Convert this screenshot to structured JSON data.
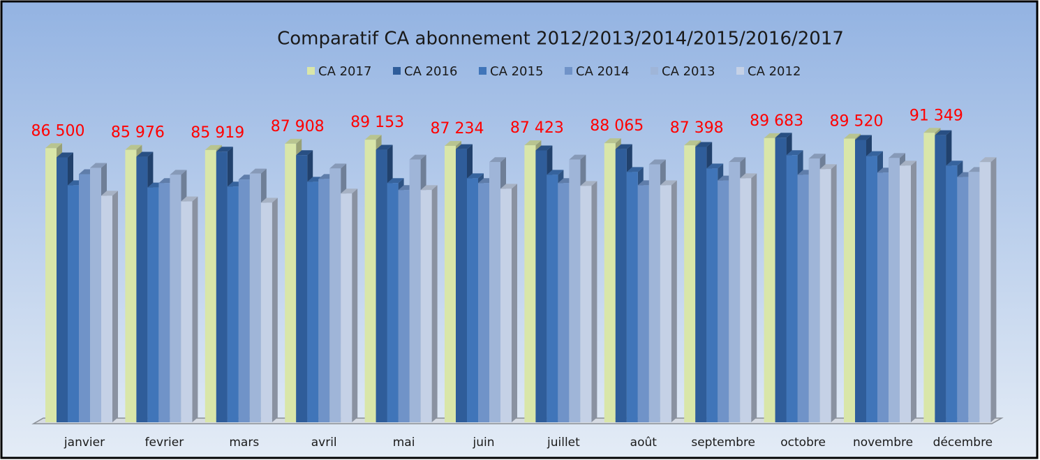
{
  "chart_data": {
    "type": "bar3d",
    "title": "Comparatif CA abonnement  2012/2013/2014/2015/2016/2017",
    "categories": [
      "janvier",
      "fevrier",
      "mars",
      "avril",
      "mai",
      "juin",
      "juillet",
      "août",
      "septembre",
      "octobre",
      "novembre",
      "décembre"
    ],
    "series": [
      {
        "name": "CA 2017",
        "color": "#d9e6a9",
        "values": [
          86500,
          85976,
          85919,
          87908,
          89153,
          87234,
          87423,
          88065,
          87398,
          89683,
          89520,
          91349
        ],
        "value_labels": [
          "86 500",
          "85 976",
          "85 919",
          "87 908",
          "89 153",
          "87 234",
          "87 423",
          "88 065",
          "87 398",
          "89 683",
          "89 520",
          "91 349"
        ]
      },
      {
        "name": "CA 2016",
        "color": "#2f5d9a",
        "values": [
          83600,
          83800,
          85400,
          84300,
          86000,
          86200,
          85800,
          86200,
          86900,
          89800,
          89100,
          90600
        ]
      },
      {
        "name": "CA 2015",
        "color": "#4075b9",
        "values": [
          74800,
          74100,
          74400,
          75900,
          75500,
          77000,
          78100,
          79000,
          80100,
          84300,
          84000,
          81000
        ]
      },
      {
        "name": "CA 2014",
        "color": "#7093c8",
        "values": [
          78300,
          75500,
          76600,
          76800,
          73300,
          75500,
          75500,
          74800,
          76300,
          78100,
          78800,
          77400
        ]
      },
      {
        "name": "CA 2013",
        "color": "#9fb5d8",
        "values": [
          80300,
          78100,
          78500,
          80100,
          82900,
          82100,
          82900,
          81400,
          82100,
          83200,
          83400,
          79000
        ]
      },
      {
        "name": "CA 2012",
        "color": "#c5d1e6",
        "values": [
          71500,
          69700,
          69300,
          72200,
          73300,
          73700,
          74600,
          74800,
          77000,
          79900,
          81000,
          82100
        ]
      }
    ],
    "ylim": [
      0,
      100000
    ],
    "value_label_color": "#ff0000"
  }
}
